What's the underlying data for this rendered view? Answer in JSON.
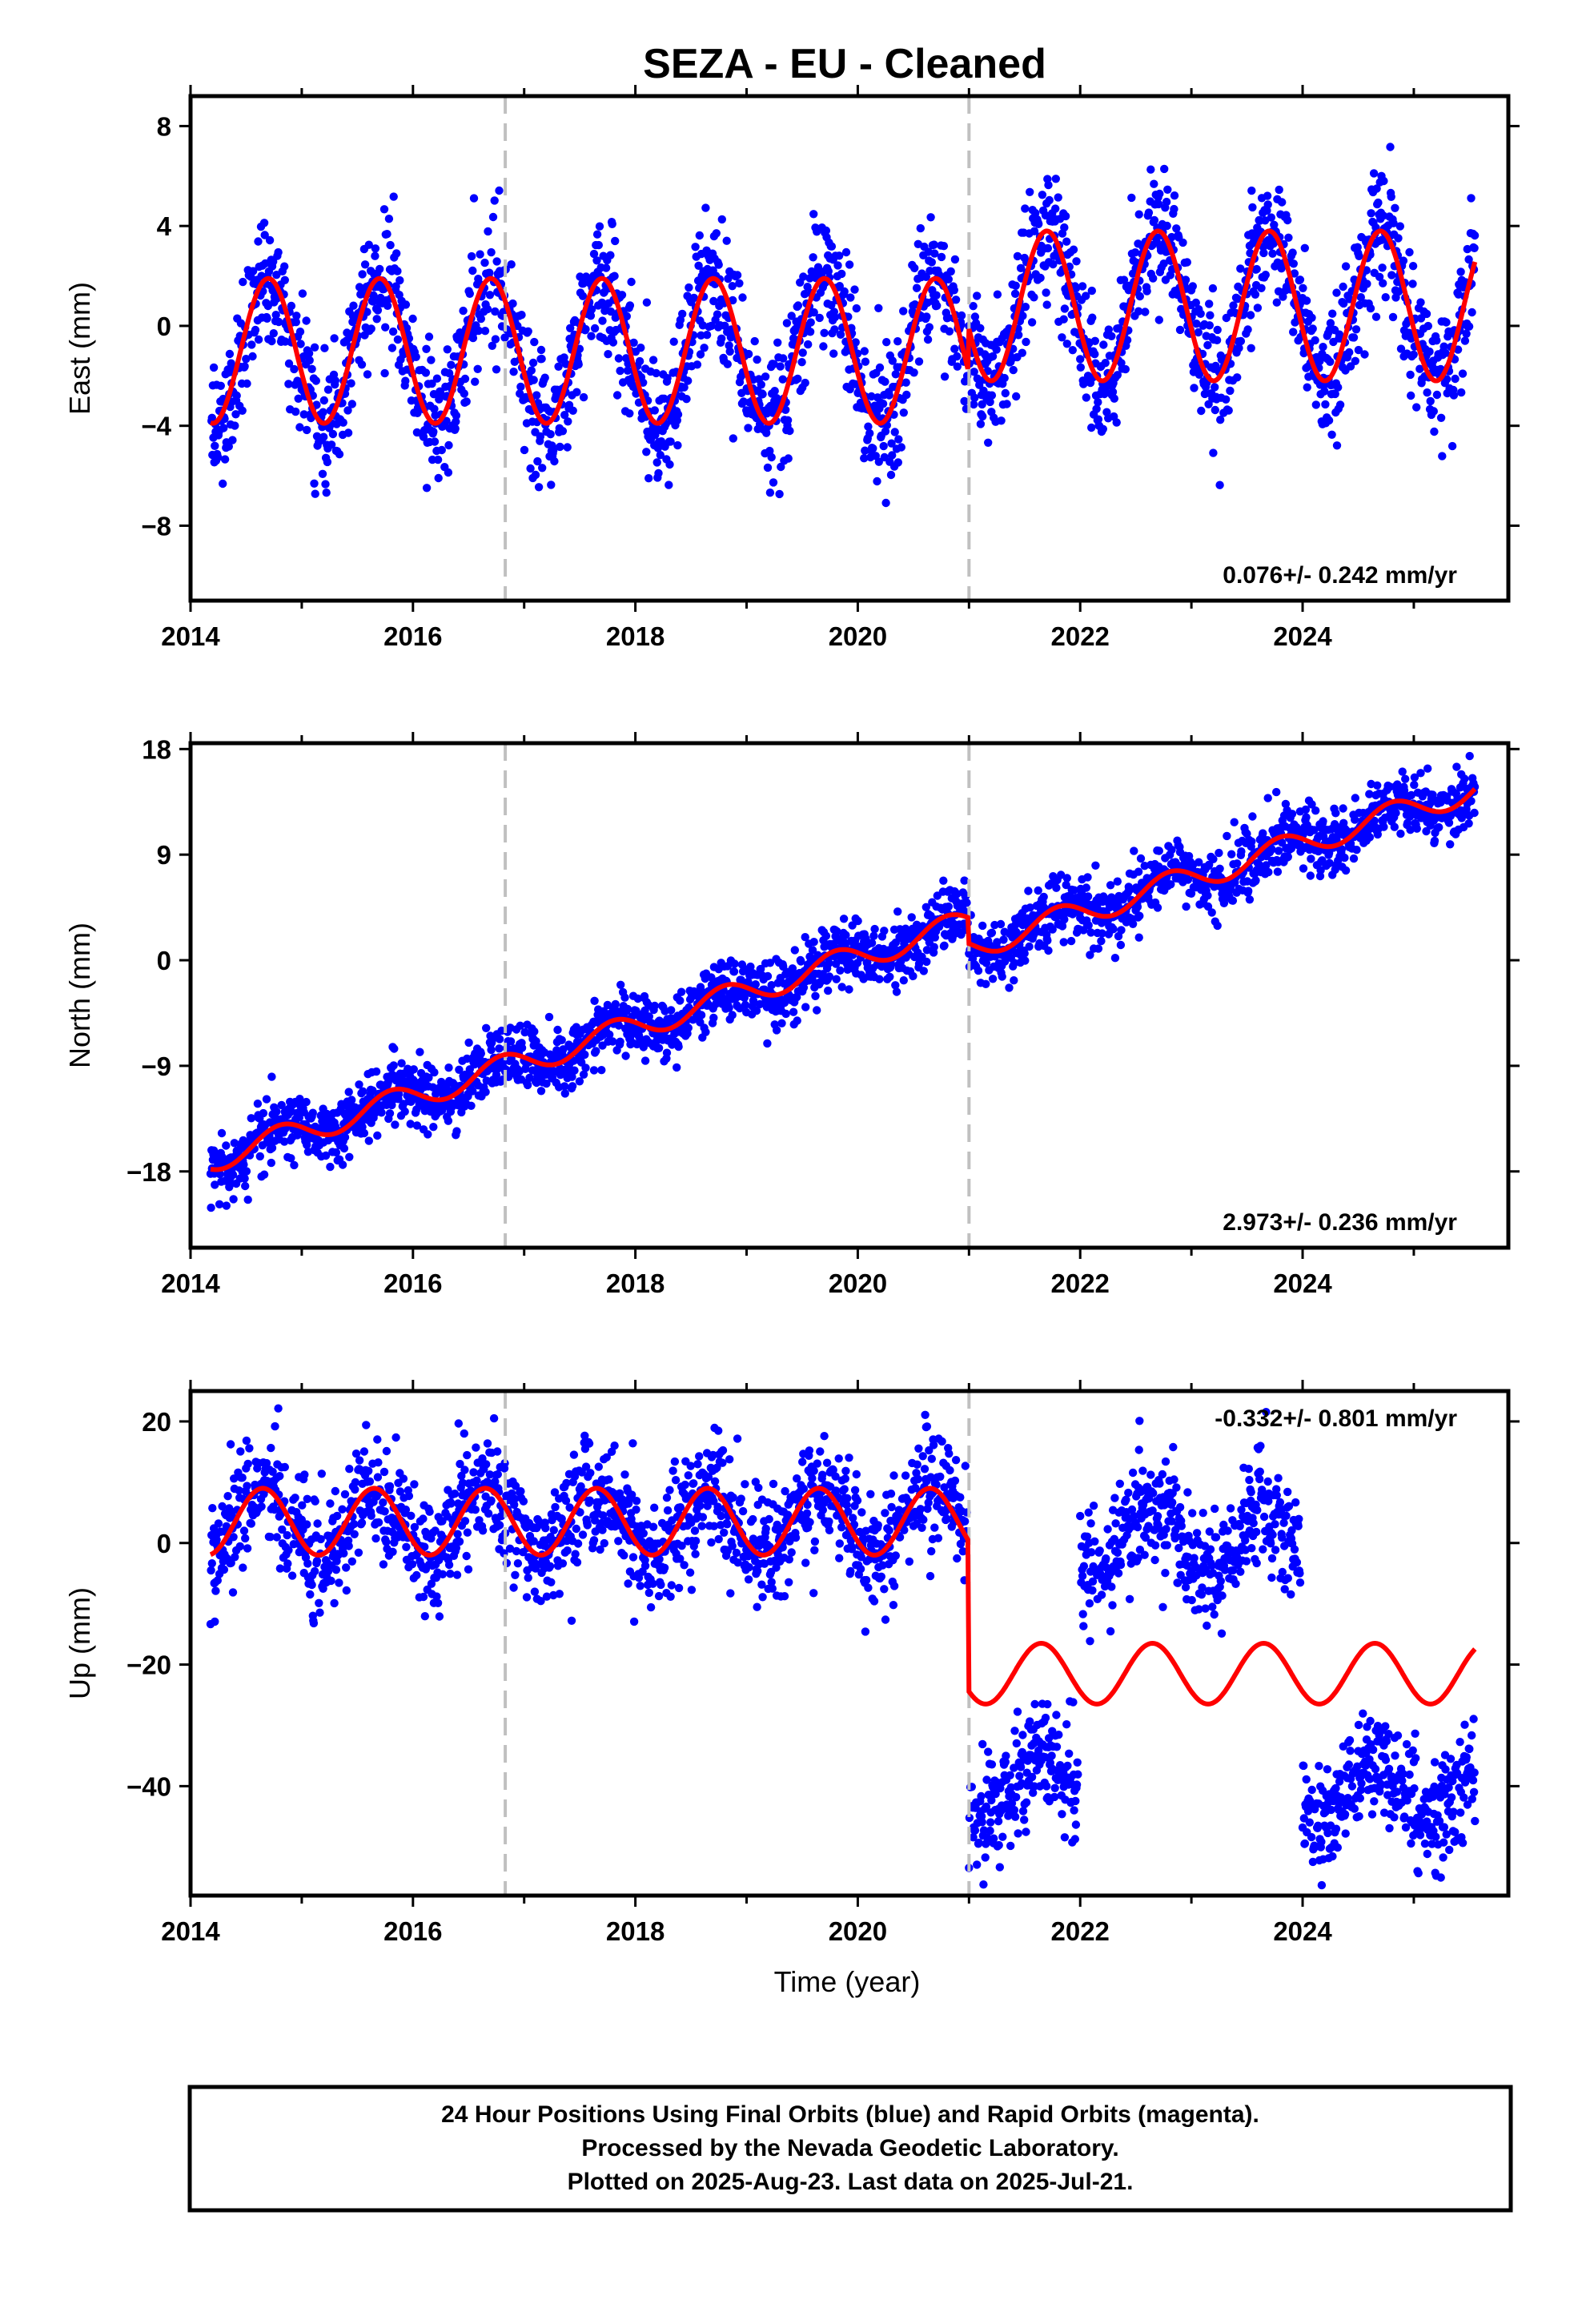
{
  "chart_data": [
    {
      "type": "scatter",
      "panel": "east",
      "title": "SEZA  - EU - Cleaned",
      "ylabel": "East (mm)",
      "xlim": [
        2014.0,
        2025.85
      ],
      "ylim": [
        -11,
        9.2
      ],
      "yticks": [
        8,
        4,
        0,
        -4,
        -8
      ],
      "ytick_labels": [
        "8",
        "4",
        "0",
        "−4",
        "−8"
      ],
      "xticks": [
        2014,
        2016,
        2018,
        2020,
        2022,
        2024
      ],
      "xtick_labels": [
        "2014",
        "2016",
        "2018",
        "2020",
        "2022",
        "2024"
      ],
      "rate_label": "0.076+/- 0.242 mm/yr",
      "model": {
        "segments": [
          {
            "t0": 2014.18,
            "t1": 2020.99,
            "offset": -1.0,
            "trend": 0.0,
            "amp": 2.9,
            "phase": 2014.45
          },
          {
            "t0": 2021.0,
            "t1": 2025.55,
            "offset": 0.8,
            "trend": 0.0,
            "amp": 3.0,
            "phase": 2014.45
          }
        ]
      },
      "noise": 1.2,
      "series": [
        {
          "name": "Final Orbits",
          "color": "#0000ff"
        },
        {
          "name": "Model fit",
          "color": "#ff0000"
        }
      ]
    },
    {
      "type": "scatter",
      "panel": "north",
      "ylabel": "North (mm)",
      "xlim": [
        2014.0,
        2025.85
      ],
      "ylim": [
        -24.5,
        18.5
      ],
      "yticks": [
        18,
        9,
        0,
        -9,
        -18
      ],
      "ytick_labels": [
        "18",
        "9",
        "0",
        "−9",
        "−18"
      ],
      "xticks": [
        2014,
        2016,
        2018,
        2020,
        2022,
        2024
      ],
      "xtick_labels": [
        "2014",
        "2016",
        "2018",
        "2020",
        "2022",
        "2024"
      ],
      "rate_label": "2.973+/- 0.236 mm/yr",
      "model": {
        "segments": [
          {
            "t0": 2014.18,
            "t1": 2020.99,
            "offset": -17.0,
            "trend": 2.973,
            "amp": 1.1,
            "phase": 2014.55
          },
          {
            "t0": 2021.0,
            "t1": 2025.55,
            "offset": -19.2,
            "trend": 2.973,
            "amp": 1.1,
            "phase": 2014.55
          }
        ]
      },
      "noise": 1.3,
      "series": [
        {
          "name": "Final Orbits",
          "color": "#0000ff"
        },
        {
          "name": "Model fit",
          "color": "#ff0000"
        }
      ]
    },
    {
      "type": "scatter",
      "panel": "up",
      "ylabel": "Up (mm)",
      "xlabel": "Time (year)",
      "xlim": [
        2014.0,
        2025.85
      ],
      "ylim": [
        -58,
        25
      ],
      "yticks": [
        20,
        0,
        -20,
        -40
      ],
      "ytick_labels": [
        "20",
        "0",
        "−20",
        "−40"
      ],
      "xticks": [
        2014,
        2016,
        2018,
        2020,
        2022,
        2024
      ],
      "xtick_labels": [
        "2014",
        "2016",
        "2018",
        "2020",
        "2022",
        "2024"
      ],
      "rate_label": "-0.332+/- 0.801 mm/yr",
      "model": {
        "segments": [
          {
            "t0": 2014.18,
            "t1": 2020.99,
            "offset": 3.5,
            "trend": 0.0,
            "amp": 5.5,
            "phase": 2014.4
          },
          {
            "t0": 2021.0,
            "t1": 2025.55,
            "offset": -21.5,
            "trend": 0.0,
            "amp": 5.0,
            "phase": 2014.4
          }
        ]
      },
      "data_segments": [
        {
          "t0": 2014.18,
          "t1": 2020.98,
          "offset": 3.5,
          "amp": 5.5
        },
        {
          "t0": 2021.0,
          "t1": 2021.98,
          "offset": -40.0,
          "amp": 5.5
        },
        {
          "t0": 2022.0,
          "t1": 2023.98,
          "offset": 1.0,
          "amp": 5.5
        },
        {
          "t0": 2024.0,
          "t1": 2025.55,
          "offset": -41.0,
          "amp": 5.5
        }
      ],
      "noise": 4.5,
      "series": [
        {
          "name": "Final Orbits",
          "color": "#0000ff"
        },
        {
          "name": "Model fit",
          "color": "#ff0000"
        }
      ]
    }
  ],
  "equipment_changes": [
    2016.83,
    2021.0
  ],
  "footer": {
    "line1": "24 Hour Positions Using Final Orbits (blue) and Rapid Orbits (magenta).",
    "line2": "Processed by the Nevada Geodetic Laboratory.",
    "line3": "Plotted on 2025-Aug-23. Last data on 2025-Jul-21."
  }
}
